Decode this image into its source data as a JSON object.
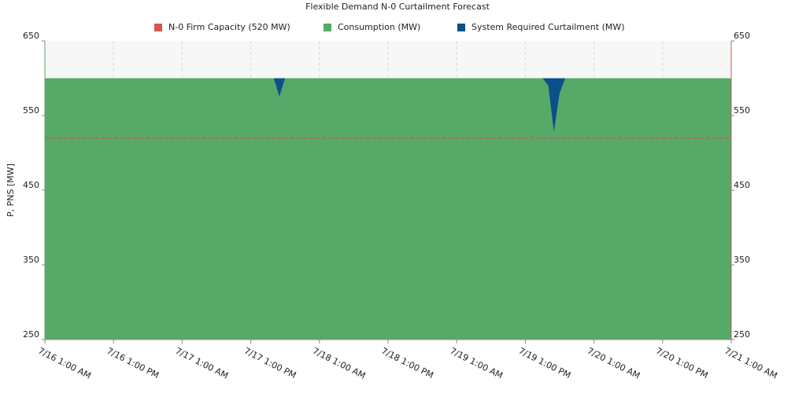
{
  "chart_data": {
    "type": "stacked-area",
    "title": "Flexible Demand N-0 Curtailment Forecast",
    "y_label": "P, PNS [MW]",
    "x": [
      "7/16 1:00 AM",
      "7/17 5:00 PM",
      "7/17 6:00 PM",
      "7/17 7:00 PM",
      "7/19 4:00 PM",
      "7/19 5:00 PM",
      "7/19 6:00 PM",
      "7/19 7:00 PM",
      "7/19 8:00 PM",
      "7/21 1:00 AM"
    ],
    "xlim": [
      "7/16 1:00 AM",
      "7/21 1:00 AM"
    ],
    "xticks": [
      "7/16 1:00 AM",
      "7/16 1:00 PM",
      "7/17 1:00 AM",
      "7/17 1:00 PM",
      "7/18 1:00 AM",
      "7/18 1:00 PM",
      "7/19 1:00 AM",
      "7/19 1:00 PM",
      "7/20 1:00 AM",
      "7/20 1:00 PM",
      "7/21 1:00 AM"
    ],
    "ylim": [
      250,
      650
    ],
    "yticks": [
      250,
      350,
      450,
      550,
      650
    ],
    "y2lim": [
      250,
      650
    ],
    "y2ticks": [
      250,
      350,
      450,
      550,
      650
    ],
    "grid": true,
    "legend": "top",
    "series": [
      {
        "name": "N-0 Firm Capacity (520 MW)",
        "color": "#d9534f",
        "kind": "line",
        "values": [
          520,
          520,
          520,
          520,
          520,
          520,
          520,
          520,
          520,
          520
        ]
      },
      {
        "name": "Consumption (MW)",
        "color": "#57a968",
        "kind": "area",
        "values": [
          600,
          600,
          575,
          600,
          600,
          590,
          527,
          580,
          600,
          600
        ]
      },
      {
        "name": "System Required Curtailment (MW)",
        "color": "#0a5089",
        "kind": "area",
        "values": [
          0,
          0,
          25,
          0,
          0,
          10,
          73,
          20,
          0,
          0
        ]
      }
    ]
  }
}
